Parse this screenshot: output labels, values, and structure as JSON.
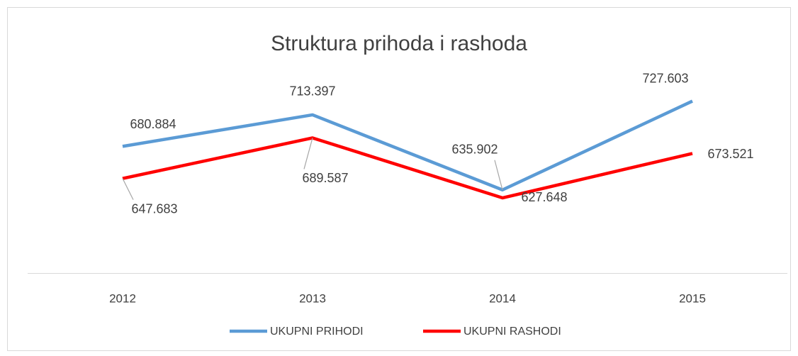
{
  "chart_data": {
    "type": "line",
    "title": "Struktura prihoda i rashoda",
    "categories": [
      "2012",
      "2013",
      "2014",
      "2015"
    ],
    "series": [
      {
        "name": "UKUPNI PRIHODI",
        "color": "#5b9bd5",
        "values": [
          680.884,
          713.397,
          635.902,
          727.603
        ]
      },
      {
        "name": "UKUPNI RASHODI",
        "color": "#ff0000",
        "values": [
          647.683,
          689.587,
          627.648,
          673.521
        ]
      }
    ],
    "ylim": [
      550,
      750
    ],
    "legend": "bottom"
  }
}
